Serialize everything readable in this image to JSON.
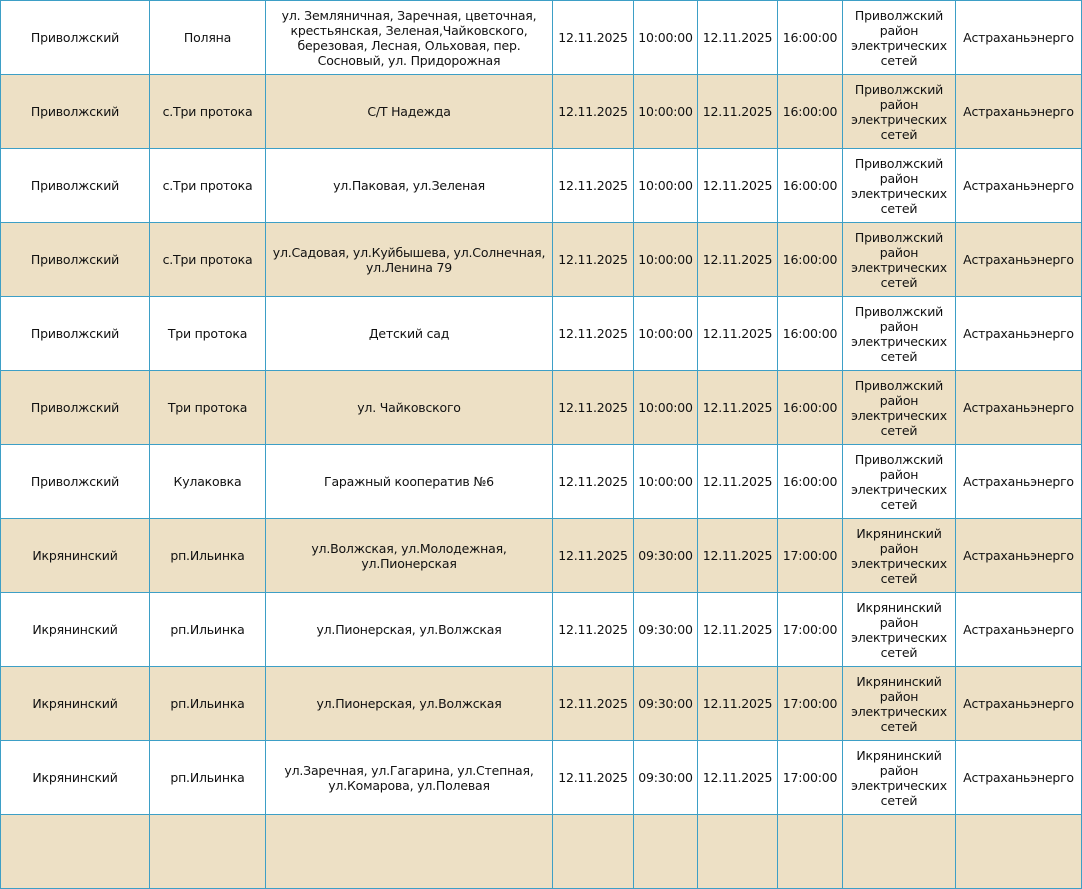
{
  "colors": {
    "border": "#3d9fc6",
    "alt_row": "#ede0c5"
  },
  "rows": [
    {
      "district": "Приволжский",
      "locality": "Поляна",
      "streets": "ул. Земляничная, Заречная, цветочная, крестьянская, Зеленая,Чайковского, березовая, Лесная, Ольховая, пер. Сосновый, ул. Придорожная",
      "start_date": "12.11.2025",
      "start_time": "10:00:00",
      "end_date": "12.11.2025",
      "end_time": "16:00:00",
      "unit": "Приволжский район электрических сетей",
      "org": "Астраханьэнерго"
    },
    {
      "district": "Приволжский",
      "locality": "с.Три протока",
      "streets": "С/Т Надежда",
      "start_date": "12.11.2025",
      "start_time": "10:00:00",
      "end_date": "12.11.2025",
      "end_time": "16:00:00",
      "unit": "Приволжский район электрических сетей",
      "org": "Астраханьэнерго"
    },
    {
      "district": "Приволжский",
      "locality": "с.Три протока",
      "streets": "ул.Паковая, ул.Зеленая",
      "start_date": "12.11.2025",
      "start_time": "10:00:00",
      "end_date": "12.11.2025",
      "end_time": "16:00:00",
      "unit": "Приволжский район электрических сетей",
      "org": "Астраханьэнерго"
    },
    {
      "district": "Приволжский",
      "locality": "с.Три протока",
      "streets": "ул.Садовая, ул.Куйбышева, ул.Солнечная, ул.Ленина 79",
      "start_date": "12.11.2025",
      "start_time": "10:00:00",
      "end_date": "12.11.2025",
      "end_time": "16:00:00",
      "unit": "Приволжский район электрических сетей",
      "org": "Астраханьэнерго"
    },
    {
      "district": "Приволжский",
      "locality": "Три протока",
      "streets": "Детский сад",
      "start_date": "12.11.2025",
      "start_time": "10:00:00",
      "end_date": "12.11.2025",
      "end_time": "16:00:00",
      "unit": "Приволжский район электрических сетей",
      "org": "Астраханьэнерго"
    },
    {
      "district": "Приволжский",
      "locality": "Три протока",
      "streets": "ул. Чайковского",
      "start_date": "12.11.2025",
      "start_time": "10:00:00",
      "end_date": "12.11.2025",
      "end_time": "16:00:00",
      "unit": "Приволжский район электрических сетей",
      "org": "Астраханьэнерго"
    },
    {
      "district": "Приволжский",
      "locality": "Кулаковка",
      "streets": "Гаражный кооператив №6",
      "start_date": "12.11.2025",
      "start_time": "10:00:00",
      "end_date": "12.11.2025",
      "end_time": "16:00:00",
      "unit": "Приволжский район электрических сетей",
      "org": "Астраханьэнерго"
    },
    {
      "district": "Икрянинский",
      "locality": "рп.Ильинка",
      "streets": "ул.Волжская, ул.Молодежная, ул.Пионерская",
      "start_date": "12.11.2025",
      "start_time": "09:30:00",
      "end_date": "12.11.2025",
      "end_time": "17:00:00",
      "unit": "Икрянинский район электрических сетей",
      "org": "Астраханьэнерго"
    },
    {
      "district": "Икрянинский",
      "locality": "рп.Ильинка",
      "streets": "ул.Пионерская, ул.Волжская",
      "start_date": "12.11.2025",
      "start_time": "09:30:00",
      "end_date": "12.11.2025",
      "end_time": "17:00:00",
      "unit": "Икрянинский район электрических сетей",
      "org": "Астраханьэнерго"
    },
    {
      "district": "Икрянинский",
      "locality": "рп.Ильинка",
      "streets": "ул.Пионерская, ул.Волжская",
      "start_date": "12.11.2025",
      "start_time": "09:30:00",
      "end_date": "12.11.2025",
      "end_time": "17:00:00",
      "unit": "Икрянинский район электрических сетей",
      "org": "Астраханьэнерго"
    },
    {
      "district": "Икрянинский",
      "locality": "рп.Ильинка",
      "streets": "ул.Заречная, ул.Гагарина, ул.Степная, ул.Комарова, ул.Полевая",
      "start_date": "12.11.2025",
      "start_time": "09:30:00",
      "end_date": "12.11.2025",
      "end_time": "17:00:00",
      "unit": "Икрянинский район электрических сетей",
      "org": "Астраханьэнерго"
    }
  ]
}
